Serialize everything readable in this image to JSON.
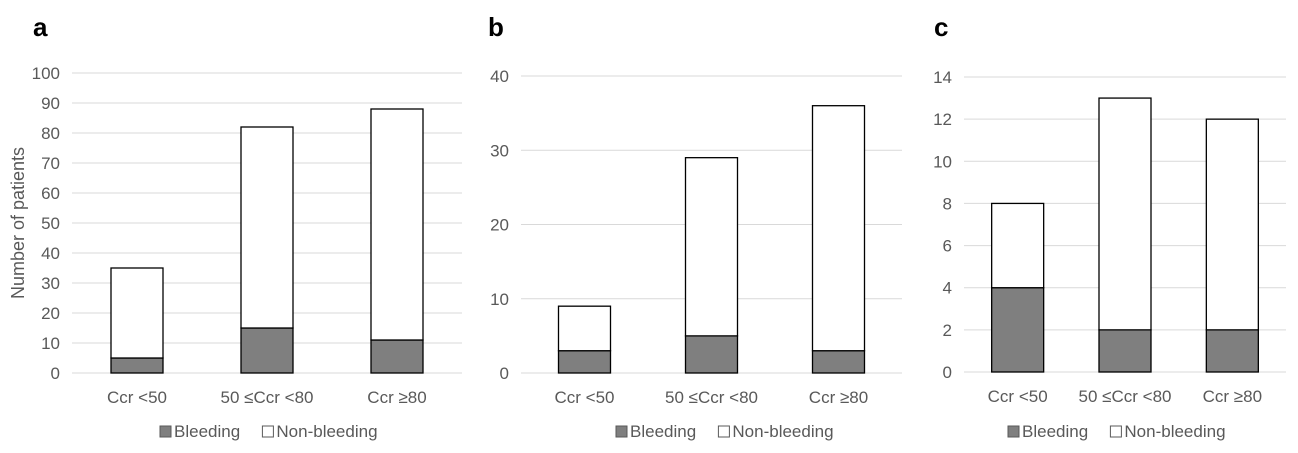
{
  "chart_data": [
    {
      "panel_label": "a",
      "type": "bar",
      "stacked": true,
      "categories": [
        "Ccr <50",
        "50 ≤Ccr <80",
        "Ccr ≥80"
      ],
      "series": [
        {
          "name": "Bleeding",
          "values": [
            5,
            15,
            11
          ],
          "color": "#7f7f7f"
        },
        {
          "name": "Non-bleeding",
          "values": [
            30,
            67,
            77
          ],
          "color": "#ffffff"
        }
      ],
      "ylabel": "Number of patients",
      "ylim": [
        0,
        100
      ],
      "yticks": [
        0,
        10,
        20,
        30,
        40,
        50,
        60,
        70,
        80,
        90,
        100
      ],
      "grid": true,
      "legend_position": "bottom"
    },
    {
      "panel_label": "b",
      "type": "bar",
      "stacked": true,
      "categories": [
        "Ccr <50",
        "50 ≤Ccr <80",
        "Ccr ≥80"
      ],
      "series": [
        {
          "name": "Bleeding",
          "values": [
            3,
            5,
            3
          ],
          "color": "#7f7f7f"
        },
        {
          "name": "Non-bleeding",
          "values": [
            6,
            24,
            33
          ],
          "color": "#ffffff"
        }
      ],
      "ylabel": "",
      "ylim": [
        0,
        40
      ],
      "yticks": [
        0,
        10,
        20,
        30,
        40
      ],
      "grid": true,
      "legend_position": "bottom"
    },
    {
      "panel_label": "c",
      "type": "bar",
      "stacked": true,
      "categories": [
        "Ccr <50",
        "50 ≤Ccr <80",
        "Ccr ≥80"
      ],
      "series": [
        {
          "name": "Bleeding",
          "values": [
            4,
            2,
            2
          ],
          "color": "#7f7f7f"
        },
        {
          "name": "Non-bleeding",
          "values": [
            4,
            11,
            10
          ],
          "color": "#ffffff"
        }
      ],
      "ylabel": "",
      "ylim": [
        0,
        14
      ],
      "yticks": [
        0,
        2,
        4,
        6,
        8,
        10,
        12,
        14
      ],
      "grid": true,
      "legend_position": "bottom"
    }
  ],
  "colors": {
    "bar_outline": "#000000",
    "gridline": "#d9d9d9",
    "tick_text": "#595959",
    "panel_label": "#000000"
  }
}
